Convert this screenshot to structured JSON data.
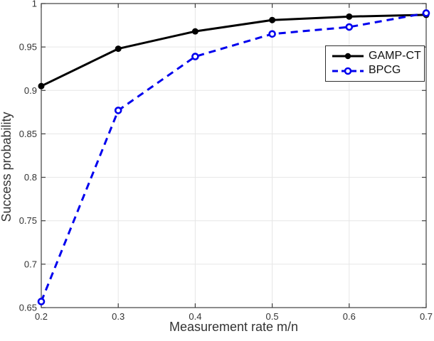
{
  "chart_data": {
    "type": "line",
    "title": "",
    "xlabel": "Measurement rate m/n",
    "ylabel": "Success probability",
    "xlim": [
      0.2,
      0.7
    ],
    "ylim": [
      0.65,
      1.0
    ],
    "grid": true,
    "legend_position": "upper right inside, boxed",
    "x": [
      0.2,
      0.3,
      0.4,
      0.5,
      0.6,
      0.7
    ],
    "x_tick_labels": [
      "0.2",
      "0.3",
      "0.4",
      "0.5",
      "0.6",
      "0.7"
    ],
    "y_ticks": [
      0.65,
      0.7,
      0.75,
      0.8,
      0.85,
      0.9,
      0.95,
      1.0
    ],
    "y_tick_labels": [
      "0.65",
      "0.7",
      "0.75",
      "0.8",
      "0.85",
      "0.9",
      "0.95",
      "1"
    ],
    "series": [
      {
        "name": "GAMP-CT",
        "color": "#000000",
        "line_style": "solid",
        "marker": "filled-circle",
        "values": [
          0.905,
          0.948,
          0.968,
          0.981,
          0.985,
          0.987
        ]
      },
      {
        "name": "BPCG",
        "color": "#0000ee",
        "line_style": "dashed",
        "marker": "open-circle",
        "values": [
          0.657,
          0.877,
          0.939,
          0.965,
          0.973,
          0.989
        ]
      }
    ],
    "colors": {
      "grid": "#e6e6e6",
      "axis": "#3f3f3f",
      "tick_labels": "#333333",
      "axis_titles": "#333333"
    }
  }
}
